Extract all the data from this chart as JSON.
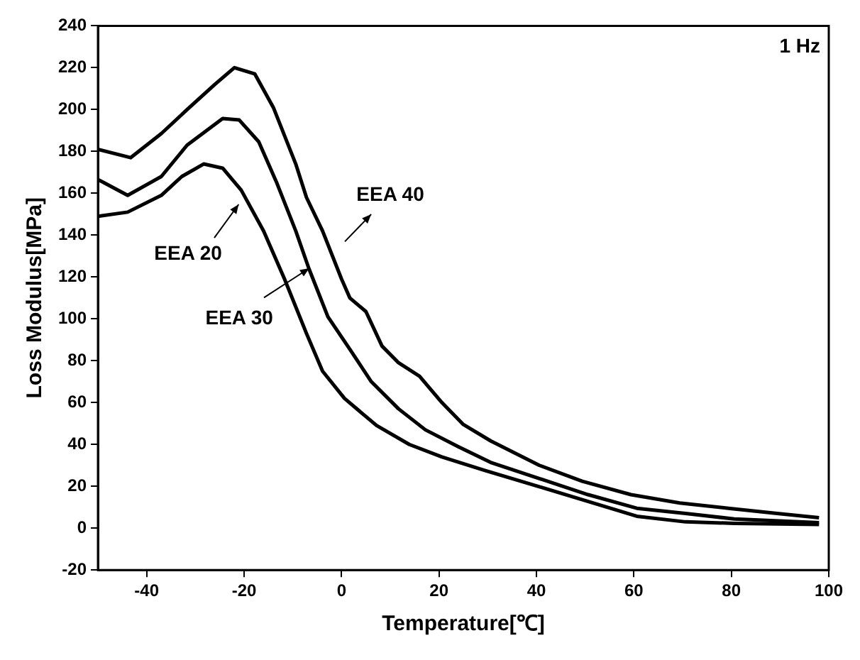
{
  "chart_data": {
    "type": "line",
    "xlabel": "Temperature[℃]",
    "ylabel": "Loss Modulus[MPa]",
    "xlim": [
      -50,
      100
    ],
    "xticks": [
      -40,
      -20,
      0,
      20,
      40,
      60,
      80,
      100
    ],
    "ylim": [
      -20,
      240
    ],
    "yticks": [
      -20,
      0,
      20,
      40,
      60,
      80,
      100,
      120,
      140,
      160,
      180,
      200,
      220,
      240
    ],
    "grid": false,
    "legend": "left",
    "marker": "none",
    "line_style": "solid",
    "annotations": [
      "1 Hz"
    ],
    "series": [
      {
        "name": "EEA 20",
        "color": "#000000",
        "x": [
          -50,
          -43.9,
          -37,
          -32.8,
          -28.3,
          -24.4,
          -20.6,
          -16,
          -11.7,
          -7.2,
          -3.9,
          0.6,
          7.2,
          13.9,
          20.6,
          29.4,
          40.6,
          51.7,
          60.6,
          70.6,
          80.6,
          98
        ],
        "values": [
          149,
          151,
          159,
          168,
          174,
          172,
          161.5,
          142,
          119,
          93,
          75,
          62,
          49,
          40,
          34,
          27.6,
          19.8,
          12,
          5.7,
          3,
          2.3,
          1.8
        ]
      },
      {
        "name": "EEA 30",
        "color": "#000000",
        "x": [
          -50,
          -43.9,
          -37,
          -31.7,
          -24.4,
          -21,
          -17,
          -13.3,
          -9.4,
          -6.7,
          -2.8,
          1.7,
          6.1,
          11.7,
          17.2,
          23.9,
          30.6,
          40.6,
          50.6,
          60.6,
          70.6,
          80.6,
          98
        ],
        "values": [
          166.6,
          159,
          168,
          183,
          195.7,
          195,
          184.6,
          165,
          142,
          124,
          101,
          85.5,
          70,
          57,
          47,
          39,
          31.4,
          23.7,
          16,
          9.5,
          7,
          4.4,
          2.6
        ]
      },
      {
        "name": "EEA 40",
        "color": "#000000",
        "x": [
          -50,
          -43.3,
          -37,
          -31.7,
          -26,
          -22,
          -17.8,
          -14,
          -9.4,
          -7.2,
          -3.9,
          0,
          1.7,
          5,
          8.3,
          11.7,
          16,
          20.6,
          25,
          30.6,
          40.6,
          49.4,
          59.4,
          69.4,
          79.4,
          89.4,
          98
        ],
        "values": [
          181,
          177,
          188.5,
          200,
          212,
          220,
          217,
          201,
          174,
          158,
          142,
          119,
          110,
          103.5,
          87,
          79,
          72.6,
          60,
          49.5,
          41.7,
          30,
          22.4,
          16,
          12,
          9.5,
          7,
          5
        ]
      }
    ]
  }
}
